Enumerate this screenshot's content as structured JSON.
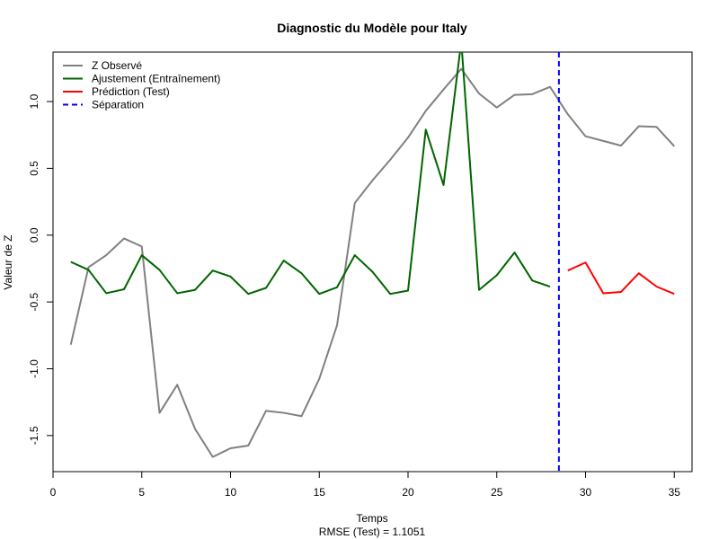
{
  "chart_data": {
    "type": "line",
    "title": "Diagnostic du Modèle pour Italy",
    "xlabel": "Temps",
    "subtitle": "RMSE (Test) = 1.1051",
    "ylabel": "Valeur de Z",
    "xlim": [
      0,
      36
    ],
    "ylim": [
      -1.77,
      1.37
    ],
    "x_ticks": [
      0,
      5,
      10,
      15,
      20,
      25,
      30,
      35
    ],
    "y_ticks": [
      -1.5,
      -1.0,
      -0.5,
      0.0,
      0.5,
      1.0
    ],
    "y_tick_labels": [
      "-1.5",
      "-1.0",
      "-0.5",
      "0.0",
      "0.5",
      "1.0"
    ],
    "grid": false,
    "legend_position": "top-left",
    "series": [
      {
        "name": "Z Observé",
        "color": "#808080",
        "style": "solid",
        "x": [
          1,
          2,
          3,
          4,
          5,
          6,
          7,
          8,
          9,
          10,
          11,
          12,
          13,
          14,
          15,
          16,
          17,
          18,
          19,
          20,
          21,
          22,
          23,
          24,
          25,
          26,
          27,
          28,
          29,
          30,
          31,
          32,
          33,
          34,
          35
        ],
        "y": [
          -0.82,
          -0.24,
          -0.15,
          -0.025,
          -0.085,
          -1.33,
          -1.12,
          -1.45,
          -1.66,
          -1.595,
          -1.575,
          -1.315,
          -1.33,
          -1.355,
          -1.075,
          -0.675,
          0.24,
          0.41,
          0.565,
          0.73,
          0.93,
          1.09,
          1.245,
          1.06,
          0.955,
          1.05,
          1.055,
          1.11,
          0.905,
          0.74,
          0.705,
          0.67,
          0.815,
          0.81,
          0.665
        ]
      },
      {
        "name": "Ajustement (Entraînement)",
        "color": "#006400",
        "style": "solid",
        "x": [
          1,
          2,
          3,
          4,
          5,
          6,
          7,
          8,
          9,
          10,
          11,
          12,
          13,
          14,
          15,
          16,
          17,
          18,
          19,
          20,
          21,
          22,
          23,
          24,
          25,
          26,
          27,
          28
        ],
        "y": [
          -0.2,
          -0.26,
          -0.435,
          -0.405,
          -0.15,
          -0.26,
          -0.435,
          -0.41,
          -0.265,
          -0.31,
          -0.44,
          -0.395,
          -0.19,
          -0.285,
          -0.44,
          -0.39,
          -0.15,
          -0.275,
          -0.44,
          -0.415,
          0.79,
          0.375,
          1.45,
          -0.41,
          -0.3,
          -0.13,
          -0.34,
          -0.385
        ]
      },
      {
        "name": "Prédiction (Test)",
        "color": "#ff0000",
        "style": "solid",
        "x": [
          29,
          30,
          31,
          32,
          33,
          34,
          35
        ],
        "y": [
          -0.265,
          -0.205,
          -0.435,
          -0.425,
          -0.285,
          -0.385,
          -0.44
        ]
      }
    ],
    "vlines": [
      {
        "name": "Séparation",
        "x": 28.5,
        "color": "#0000ff",
        "style": "dashed"
      }
    ]
  }
}
